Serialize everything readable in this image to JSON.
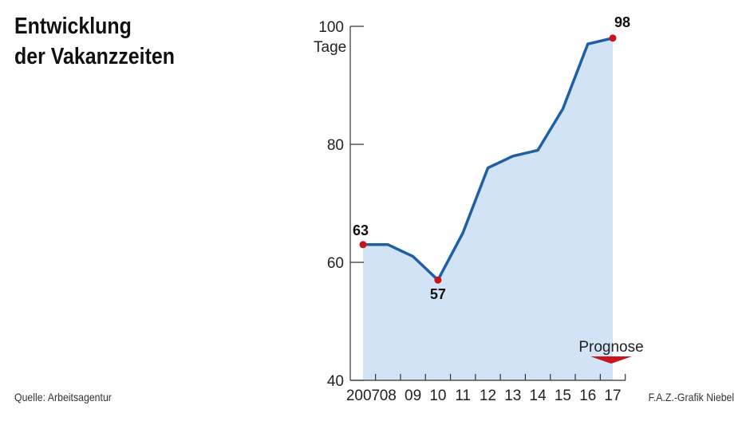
{
  "header": {
    "title_line1": "Entwicklung",
    "title_line2": "der Vakanzzeiten"
  },
  "footer": {
    "source": "Quelle: Arbeitsagentur",
    "credit": "F.A.Z.-Grafik Niebel"
  },
  "colors": {
    "line": "#1f5fa3",
    "area": "#d3e3f6",
    "marker": "#c8141b",
    "axis": "#333333"
  },
  "chart_data": {
    "type": "area",
    "title": "Entwicklung der Vakanzzeiten",
    "ylabel": "Tage",
    "ylim": [
      40,
      100
    ],
    "yticks": [
      40,
      60,
      80,
      100
    ],
    "grid": false,
    "categories": [
      "2007",
      "08",
      "09",
      "10",
      "11",
      "12",
      "13",
      "14",
      "15",
      "16",
      "17"
    ],
    "values": [
      63,
      63,
      61,
      57,
      65,
      76,
      78,
      79,
      86,
      97,
      98
    ],
    "data_labels": [
      {
        "index": 0,
        "text": "63"
      },
      {
        "index": 3,
        "text": "57"
      },
      {
        "index": 10,
        "text": "98"
      }
    ],
    "annotation": {
      "text": "Prognose",
      "index": 10
    }
  }
}
